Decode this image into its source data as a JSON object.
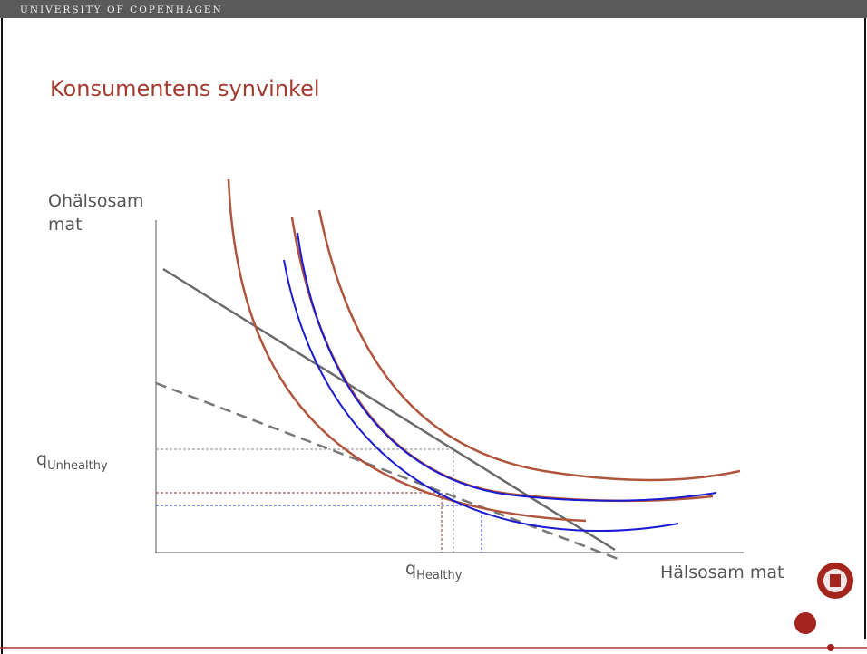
{
  "header": "UNIVERSITY OF COPENHAGEN",
  "title": "Konsumentens synvinkel",
  "axes": {
    "y_label": [
      "Ohälsosam",
      "mat"
    ],
    "x_label": "Hälsosam mat"
  },
  "labels": {
    "q_unhealthy": {
      "symbol": "q",
      "subscript": "Unhealthy"
    },
    "q_healthy": {
      "symbol": "q",
      "subscript": "Healthy"
    }
  }
}
